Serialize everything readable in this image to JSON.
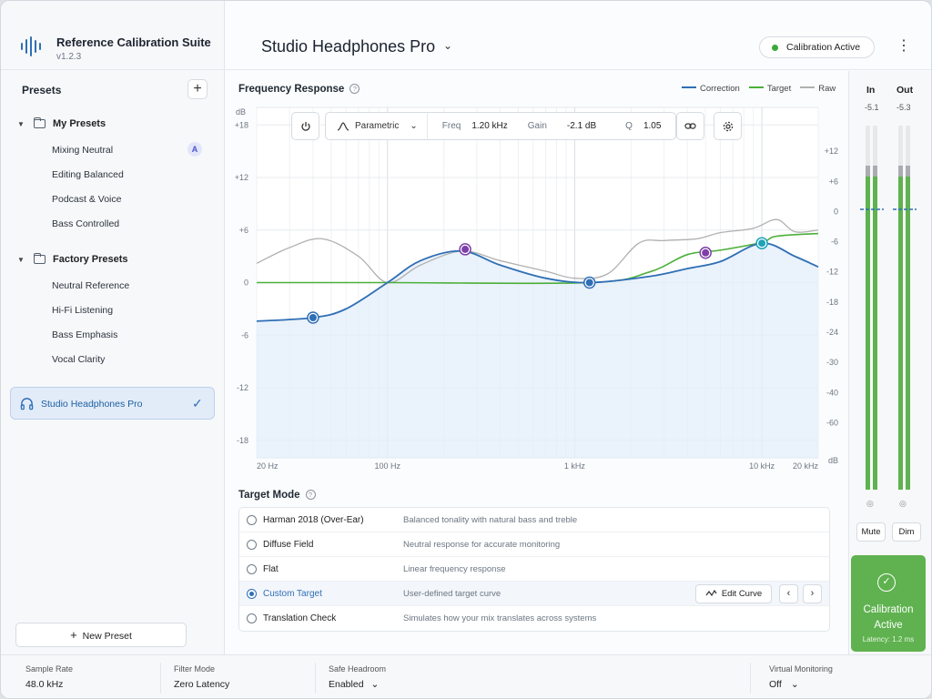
{
  "app": {
    "title": "Reference Calibration Suite",
    "version": "v1.2.3"
  },
  "sidebar": {
    "title": "Presets",
    "add_label": "+",
    "groups": [
      {
        "label": "My Presets",
        "items": [
          "Mixing Neutral",
          "Editing Balanced",
          "Podcast & Voice",
          "Bass Controlled"
        ],
        "badge": "A"
      },
      {
        "label": "Factory Presets",
        "items": [
          "Neutral Reference",
          "Hi-Fi Listening",
          "Bass Emphasis",
          "Vocal Clarity"
        ]
      }
    ],
    "selected": "Studio Headphones Pro",
    "new_preset_label": "New Preset"
  },
  "header": {
    "device": "Studio Headphones Pro",
    "status": "Calibration Active"
  },
  "frequency_response": {
    "title": "Frequency Response",
    "legend": [
      {
        "name": "Correction",
        "color": "#2f6fb5"
      },
      {
        "name": "Target",
        "color": "#4caf3a"
      },
      {
        "name": "Raw",
        "color": "#b0b0b0"
      }
    ],
    "toolbar": {
      "filter_type": "Parametric",
      "freq_label": "Freq",
      "freq_value": "1.20 kHz",
      "gain_label": "Gain",
      "gain_value": "-2.1 dB",
      "q_label": "Q",
      "q_value": "1.05"
    },
    "y_unit": "dB",
    "x_unit": "dB",
    "y_left_ticks": [
      "+18",
      "+12",
      "+6",
      "0",
      "-6",
      "-12",
      "-18"
    ],
    "y_right_ticks": [
      "+12",
      "+6",
      "0",
      "-6",
      "-12",
      "-18",
      "-24",
      "-30",
      "-40",
      "-60"
    ],
    "x_ticks": [
      "20 Hz",
      "100 Hz",
      "1 kHz",
      "10 kHz",
      "20 kHz"
    ]
  },
  "chart_data": {
    "type": "line",
    "xscale": "log",
    "xlim": [
      20,
      20000
    ],
    "ylim": [
      -20,
      20
    ],
    "series": [
      {
        "name": "Correction",
        "color": "#2f6fb5",
        "x": [
          20,
          40,
          60,
          100,
          150,
          250,
          400,
          700,
          1200,
          2500,
          4000,
          6000,
          10000,
          15000,
          20000
        ],
        "y": [
          -4.4,
          -4.0,
          -3.0,
          0.0,
          2.5,
          3.6,
          2.0,
          0.5,
          0.0,
          0.7,
          1.6,
          2.4,
          4.5,
          3.0,
          1.8
        ]
      },
      {
        "name": "Target",
        "color": "#4caf3a",
        "x": [
          20,
          100,
          1200,
          2500,
          4000,
          6000,
          10000,
          12000,
          20000
        ],
        "y": [
          0,
          0,
          0,
          1.2,
          3.2,
          3.7,
          4.6,
          5.3,
          5.6
        ]
      },
      {
        "name": "Raw",
        "color": "#b0b0b0",
        "x": [
          20,
          30,
          45,
          70,
          100,
          150,
          250,
          400,
          700,
          1000,
          1500,
          2200,
          3000,
          4500,
          6000,
          9000,
          12000,
          15000,
          20000
        ],
        "y": [
          2.2,
          4.0,
          5.0,
          3.0,
          0.0,
          2.0,
          3.6,
          2.5,
          1.3,
          0.5,
          1.0,
          4.5,
          4.8,
          5.0,
          5.7,
          6.2,
          7.2,
          5.8,
          6.0
        ]
      }
    ],
    "control_points": [
      {
        "x": 40,
        "y": -4.0,
        "color": "#2f6fb5"
      },
      {
        "x": 260,
        "y": 3.8,
        "color": "#7d3fa8"
      },
      {
        "x": 1200,
        "y": 0.0,
        "color": "#2f6fb5"
      },
      {
        "x": 5000,
        "y": 3.4,
        "color": "#7d3fa8"
      },
      {
        "x": 10000,
        "y": 4.5,
        "color": "#1ea3b8"
      }
    ]
  },
  "target_mode": {
    "title": "Target Mode",
    "options": [
      {
        "name": "Harman 2018 (Over-Ear)",
        "desc": "Balanced tonality with natural bass and treble",
        "selected": false
      },
      {
        "name": "Diffuse Field",
        "desc": "Neutral response for accurate monitoring",
        "selected": false
      },
      {
        "name": "Flat",
        "desc": "Linear frequency response",
        "selected": false
      },
      {
        "name": "Custom Target",
        "desc": "User-defined target curve",
        "selected": true
      },
      {
        "name": "Translation Check",
        "desc": "Simulates how your mix translates across systems",
        "selected": false
      }
    ],
    "edit_curve_label": "Edit Curve",
    "prev_label": "‹",
    "next_label": "›"
  },
  "meters": {
    "in_label": "In",
    "in_value": "-5.1",
    "in_level": 0.86,
    "out_label": "Out",
    "out_value": "-5.3",
    "out_level": 0.86,
    "mute_label": "Mute",
    "dim_label": "Dim",
    "card_title": "Calibration Active",
    "latency": "Latency: 1.2 ms"
  },
  "status_bar": {
    "sample_rate_label": "Sample Rate",
    "sample_rate": "48.0 kHz",
    "filter_mode_label": "Filter Mode",
    "filter_mode": "Zero Latency",
    "headroom_label": "Safe Headroom",
    "headroom": "Enabled",
    "virtual_label": "Virtual Monitoring",
    "virtual": "Off"
  }
}
